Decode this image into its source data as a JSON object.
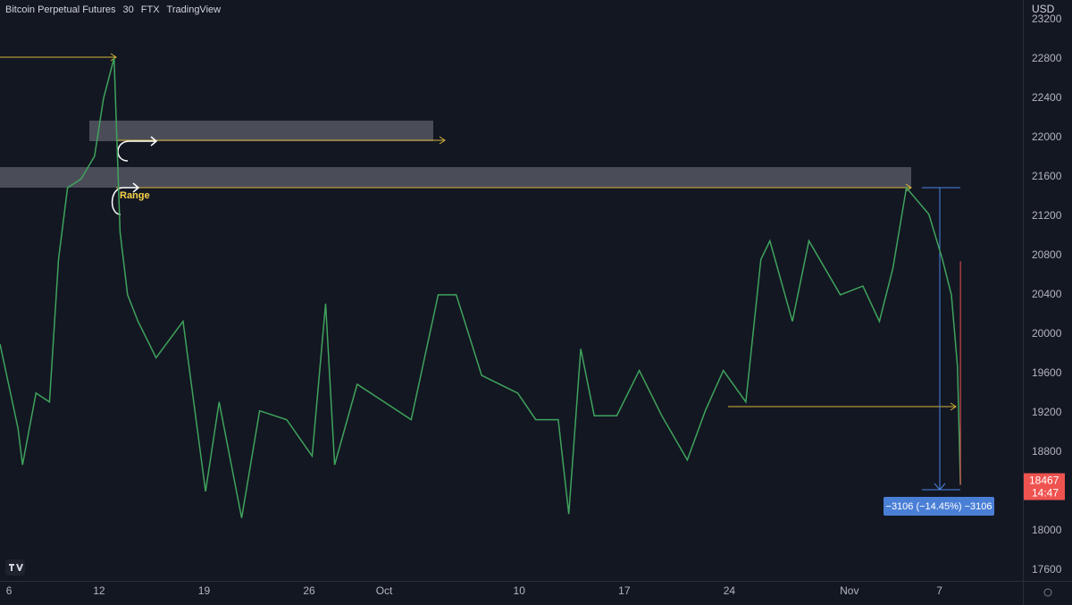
{
  "chart_data": {
    "type": "line",
    "header": {
      "symbol": "Bitcoin Perpetual Futures",
      "interval": "30",
      "exchange": "FTX",
      "source": "TradingView"
    },
    "currency": "USD",
    "annotation": "Range",
    "measure_label": "−3106 (−14.45%) −3106",
    "last_price": 18467,
    "countdown": "14:47",
    "x": [
      -0.6,
      0.6,
      0.9,
      1.8,
      2.7,
      3.3,
      3.9,
      4.8,
      5.7,
      6.3,
      7.0,
      7.4,
      7.9,
      8.6,
      9.8,
      11.6,
      13.1,
      14.0,
      15.5,
      16.7,
      18.5,
      20.2,
      21.1,
      21.7,
      23.2,
      25.0,
      26.8,
      28.6,
      29.8,
      31.5,
      33.9,
      35.1,
      36.6,
      37.3,
      38.1,
      39.0,
      40.5,
      42.0,
      43.5,
      45.2,
      46.4,
      47.6,
      49.1,
      50.1,
      50.7,
      52.2,
      53.3,
      55.4,
      56.9,
      58.0,
      58.9,
      59.8,
      61.3,
      62.2,
      62.8,
      63.2,
      63.4
    ],
    "series": [
      {
        "color": "#3fa35c",
        "values": [
          19900,
          19040,
          18670,
          19400,
          19310,
          20760,
          21490,
          21580,
          21810,
          22400,
          22810,
          21040,
          20400,
          20130,
          19760,
          20130,
          18400,
          19310,
          18130,
          19220,
          19130,
          18760,
          20310,
          18670,
          19490,
          19310,
          19130,
          20400,
          20400,
          19580,
          19400,
          19130,
          19130,
          18170,
          19850,
          19170,
          19170,
          19630,
          19170,
          18720,
          19220,
          19630,
          19310,
          20760,
          20950,
          20130,
          20950,
          20400,
          20490,
          20130,
          20670,
          21490,
          21220,
          20760,
          20400,
          19670,
          18467
        ]
      }
    ],
    "xlim": [
      -0.6,
      67.56
    ],
    "ylim": [
      17490,
      23400
    ],
    "xticks": [
      {
        "value": 0,
        "label": "6"
      },
      {
        "value": 6,
        "label": "12"
      },
      {
        "value": 13,
        "label": "19"
      },
      {
        "value": 20,
        "label": "26"
      },
      {
        "value": 25,
        "label": "Oct"
      },
      {
        "value": 34,
        "label": "10"
      },
      {
        "value": 41,
        "label": "17"
      },
      {
        "value": 48,
        "label": "24"
      },
      {
        "value": 56,
        "label": "Nov"
      },
      {
        "value": 62,
        "label": "7"
      }
    ],
    "yticks": [
      23200,
      22800,
      22400,
      22000,
      21600,
      21200,
      20800,
      20400,
      20000,
      19600,
      19200,
      18800,
      18000,
      17600
    ],
    "grid": false
  }
}
